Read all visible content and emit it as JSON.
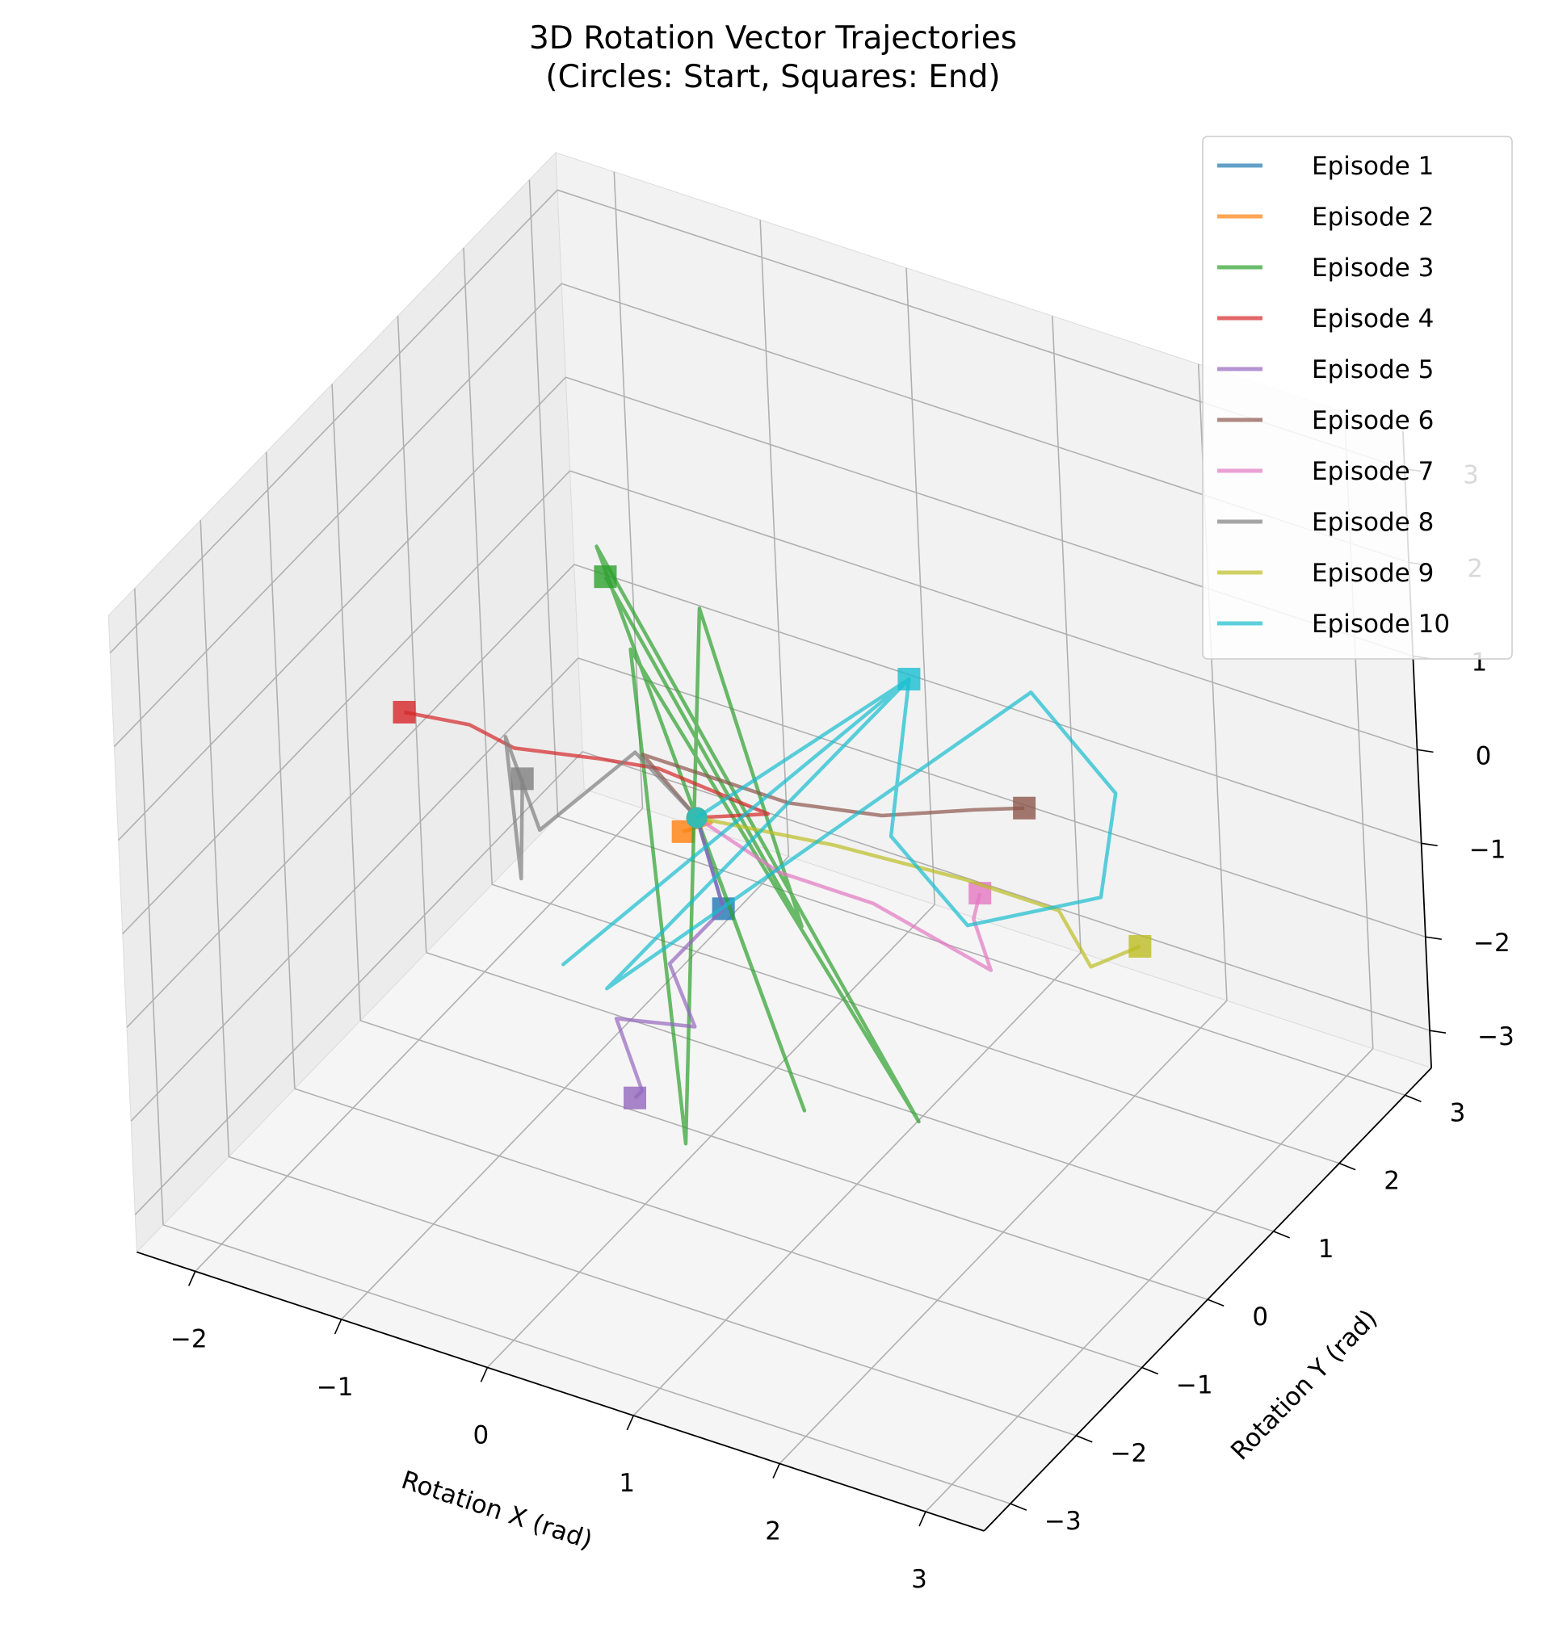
{
  "chart_data": {
    "type": "line3d",
    "title": "3D Rotation Vector Trajectories",
    "subtitle": "(Circles: Start, Squares: End)",
    "x_label": "Rotation X (rad)",
    "y_label": "Rotation Y (rad)",
    "xlim": [
      -2.4,
      3.4
    ],
    "ylim": [
      -3.4,
      3.4
    ],
    "zlim": [
      -3.4,
      3.4
    ],
    "xticks": [
      {
        "value": -2,
        "label": "−2"
      },
      {
        "value": -1,
        "label": "−1"
      },
      0,
      1,
      2,
      3
    ],
    "yticks": [
      {
        "value": -3,
        "label": "−3"
      },
      {
        "value": -2,
        "label": "−2"
      },
      {
        "value": -1,
        "label": "−1"
      },
      0,
      1,
      2,
      3
    ],
    "zticks": [
      {
        "value": -3,
        "label": "−3"
      },
      {
        "value": -2,
        "label": "−2"
      },
      {
        "value": -1,
        "label": "−1"
      },
      0,
      1,
      2,
      3
    ],
    "grid": true,
    "legend": "upper right",
    "series": [
      {
        "name": "Episode 1",
        "color": "#1f77b4",
        "x": [
          0,
          0.1,
          0.2,
          0.3
        ],
        "y": [
          0,
          -0.1,
          -0.2,
          -0.3
        ],
        "z": [
          0,
          -0.2,
          -0.4,
          -0.6
        ]
      },
      {
        "name": "Episode 2",
        "color": "#ff7f0e",
        "x": [
          0,
          0.05,
          -0.1
        ],
        "y": [
          0,
          0.1,
          0
        ],
        "z": [
          0,
          -0.1,
          -0.2
        ]
      },
      {
        "name": "Episode 3",
        "color": "#2ca02c",
        "x": [
          0,
          0.8,
          -0.9,
          1.4,
          -0.6,
          0.3,
          -0.3,
          0.6,
          -0.8
        ],
        "y": [
          0,
          -0.3,
          0.6,
          0.1,
          0.4,
          -1,
          0.8,
          0.2,
          0.5
        ],
        "z": [
          0,
          -2.5,
          2,
          -2.6,
          1.2,
          -2.6,
          1.5,
          -1,
          1.8
        ]
      },
      {
        "name": "Episode 4",
        "color": "#d62728",
        "x": [
          0,
          0.4,
          -0.3,
          -0.8,
          -1.2,
          -1.6,
          -2
        ],
        "y": [
          0,
          0.2,
          0.1,
          0.3,
          -0.1,
          0.1,
          0
        ],
        "z": [
          0,
          0.1,
          0.3,
          0,
          0.2,
          0.1,
          0.1
        ]
      },
      {
        "name": "Episode 5",
        "color": "#9467bd",
        "x": [
          0,
          0.3,
          0.1,
          0.4,
          0,
          0.3,
          0.2
        ],
        "y": [
          0,
          -0.3,
          -0.7,
          -1,
          -1.3,
          -1.6,
          -1.5
        ],
        "z": [
          0,
          -0.6,
          -1,
          -1.3,
          -1.2,
          -1.6,
          -1.8
        ]
      },
      {
        "name": "Episode 6",
        "color": "#8c564b",
        "x": [
          0,
          -0.5,
          0.4,
          1,
          1.5,
          1.8
        ],
        "y": [
          0,
          0.3,
          0.5,
          0.6,
          0.9,
          1
        ],
        "z": [
          0,
          0.2,
          0,
          0.1,
          0.2,
          0.3
        ]
      },
      {
        "name": "Episode 7",
        "color": "#e377c2",
        "x": [
          0,
          0.6,
          1.2,
          1.9,
          1.7,
          1.8
        ],
        "y": [
          0,
          -0.1,
          0,
          0.2,
          0.4,
          0.3
        ],
        "z": [
          0,
          -0.2,
          -0.3,
          -0.8,
          -0.5,
          -0.1
        ]
      },
      {
        "name": "Episode 8",
        "color": "#7f7f7f",
        "x": [
          0,
          -0.6,
          -1,
          -1.4,
          -1,
          -1.2
        ],
        "y": [
          0,
          0.4,
          -0.2,
          0.2,
          -0.5,
          0
        ],
        "z": [
          0,
          0.1,
          -0.5,
          0,
          -0.8,
          -0.2
        ]
      },
      {
        "name": "Episode 9",
        "color": "#bcbd22",
        "x": [
          0,
          0.8,
          1.6,
          2.2,
          2.5,
          2.8
        ],
        "y": [
          0,
          0.3,
          0.5,
          0.6,
          0.4,
          0.5
        ],
        "z": [
          0,
          -0.1,
          -0.2,
          -0.3,
          -0.6,
          -0.3
        ]
      },
      {
        "name": "Episode 10",
        "color": "#17becf",
        "x": [
          0,
          0.8,
          -0.4,
          0.8,
          -0.2,
          1.5,
          2.2,
          2.4,
          1.8,
          1.2,
          0.8
        ],
        "y": [
          0,
          1.5,
          -1.2,
          1.5,
          -1,
          1.8,
          1.5,
          0.8,
          0.1,
          0.3,
          1.5
        ],
        "z": [
          0,
          0.8,
          -0.9,
          0.8,
          -1.2,
          0.8,
          0.3,
          -0.2,
          -0.3,
          0.2,
          0.8
        ]
      }
    ]
  }
}
